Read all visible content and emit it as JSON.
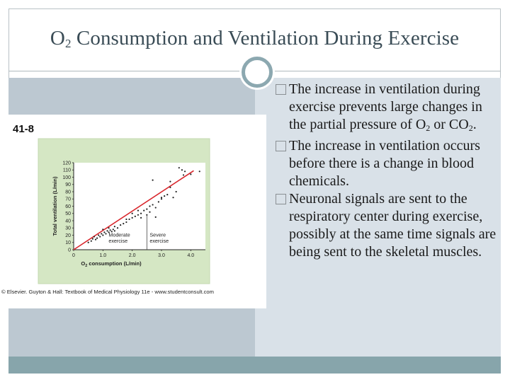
{
  "slide": {
    "title_prefix": "O",
    "title_sub": "2",
    "title_suffix": " Consumption and Ventilation During Exercise"
  },
  "figure": {
    "number": "41-8",
    "credit": "© Elsevier. Guyton & Hall: Textbook of Medical Physiology 11e - www.studentconsult.com"
  },
  "bullets": [
    {
      "t1": "The increase in ventilation during exercise prevents large changes in the partial pressure of O",
      "s1": "2",
      "t2": " or CO",
      "s2": "2",
      "t3": "."
    },
    {
      "text": "The increase in ventilation occurs before there is a change in blood chemicals."
    },
    {
      "text": "Neuronal signals are sent to the respiratory center during exercise, possibly at the same time signals are being sent to the skeletal muscles."
    }
  ],
  "chart_data": {
    "type": "scatter",
    "xlabel_prefix": "O",
    "xlabel_sub": "2",
    "xlabel_suffix": " consumption (L/min)",
    "ylabel": "Total ventilation (L/min)",
    "xlim": [
      0,
      4.5
    ],
    "ylim": [
      0,
      120
    ],
    "x_ticks": [
      0,
      1.0,
      2.0,
      3.0,
      4.0
    ],
    "x_tick_labels": [
      "0",
      "1.0",
      "2.0",
      "3.0",
      "4.0"
    ],
    "y_ticks": [
      0,
      10,
      20,
      30,
      40,
      50,
      60,
      70,
      80,
      90,
      100,
      110,
      120
    ],
    "y_tick_labels": [
      "0",
      "10",
      "20",
      "30",
      "40",
      "50",
      "60",
      "70",
      "80",
      "90",
      "100",
      "110",
      "120"
    ],
    "regression_line": {
      "x": [
        0,
        4.1
      ],
      "y": [
        0,
        109
      ]
    },
    "divider_x": 2.5,
    "region_labels": [
      {
        "line1": "Moderate",
        "line2": "exercise"
      },
      {
        "line1": "Severe",
        "line2": "exercise"
      }
    ],
    "points": [
      {
        "x": 0.5,
        "y": 10
      },
      {
        "x": 0.6,
        "y": 12
      },
      {
        "x": 0.65,
        "y": 15
      },
      {
        "x": 0.7,
        "y": 18
      },
      {
        "x": 0.75,
        "y": 14
      },
      {
        "x": 0.8,
        "y": 16
      },
      {
        "x": 0.85,
        "y": 20
      },
      {
        "x": 0.9,
        "y": 18
      },
      {
        "x": 0.95,
        "y": 22
      },
      {
        "x": 1.0,
        "y": 20
      },
      {
        "x": 1.05,
        "y": 24
      },
      {
        "x": 1.1,
        "y": 22
      },
      {
        "x": 1.15,
        "y": 26
      },
      {
        "x": 1.2,
        "y": 24
      },
      {
        "x": 1.25,
        "y": 27
      },
      {
        "x": 1.3,
        "y": 25
      },
      {
        "x": 1.35,
        "y": 28
      },
      {
        "x": 1.4,
        "y": 26
      },
      {
        "x": 1.5,
        "y": 30
      },
      {
        "x": 1.6,
        "y": 34
      },
      {
        "x": 1.7,
        "y": 36
      },
      {
        "x": 1.8,
        "y": 38
      },
      {
        "x": 1.9,
        "y": 42
      },
      {
        "x": 2.0,
        "y": 44
      },
      {
        "x": 2.1,
        "y": 46
      },
      {
        "x": 2.2,
        "y": 48
      },
      {
        "x": 2.3,
        "y": 50
      },
      {
        "x": 2.4,
        "y": 54
      },
      {
        "x": 2.5,
        "y": 56
      },
      {
        "x": 2.6,
        "y": 60
      },
      {
        "x": 2.7,
        "y": 62
      },
      {
        "x": 2.8,
        "y": 58
      },
      {
        "x": 2.9,
        "y": 66
      },
      {
        "x": 3.0,
        "y": 70
      },
      {
        "x": 3.1,
        "y": 74
      },
      {
        "x": 3.2,
        "y": 76
      },
      {
        "x": 3.3,
        "y": 86
      },
      {
        "x": 2.7,
        "y": 96
      },
      {
        "x": 3.6,
        "y": 113
      },
      {
        "x": 3.7,
        "y": 110
      },
      {
        "x": 3.8,
        "y": 108
      },
      {
        "x": 3.75,
        "y": 103
      },
      {
        "x": 4.0,
        "y": 104
      },
      {
        "x": 4.3,
        "y": 108
      },
      {
        "x": 2.0,
        "y": 50
      },
      {
        "x": 2.2,
        "y": 54
      },
      {
        "x": 2.5,
        "y": 48
      },
      {
        "x": 2.8,
        "y": 45
      },
      {
        "x": 3.5,
        "y": 80
      },
      {
        "x": 3.3,
        "y": 94
      },
      {
        "x": 1.2,
        "y": 30
      },
      {
        "x": 1.0,
        "y": 28
      },
      {
        "x": 1.4,
        "y": 32
      },
      {
        "x": 1.8,
        "y": 42
      },
      {
        "x": 2.3,
        "y": 44
      },
      {
        "x": 2.6,
        "y": 52
      },
      {
        "x": 3.0,
        "y": 72
      },
      {
        "x": 3.4,
        "y": 72
      }
    ]
  }
}
